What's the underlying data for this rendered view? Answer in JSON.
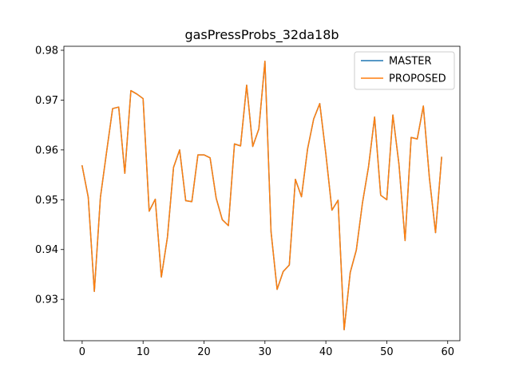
{
  "chart_data": {
    "type": "line",
    "title": "gasPressProbs_32da18b",
    "xlabel": "",
    "ylabel": "",
    "xlim": [
      -3,
      62
    ],
    "ylim": [
      0.9217,
      0.9808
    ],
    "xticks": [
      0,
      10,
      20,
      30,
      40,
      50,
      60
    ],
    "yticks": [
      0.93,
      0.94,
      0.95,
      0.96,
      0.97,
      0.98
    ],
    "xtick_labels": [
      "0",
      "10",
      "20",
      "30",
      "40",
      "50",
      "60"
    ],
    "ytick_labels": [
      "0.93",
      "0.94",
      "0.95",
      "0.96",
      "0.97",
      "0.98"
    ],
    "grid": false,
    "legend_position": "upper right",
    "x": [
      0,
      1,
      2,
      3,
      4,
      5,
      6,
      7,
      8,
      9,
      10,
      11,
      12,
      13,
      14,
      15,
      16,
      17,
      18,
      19,
      20,
      21,
      22,
      23,
      24,
      25,
      26,
      27,
      28,
      29,
      30,
      31,
      32,
      33,
      34,
      35,
      36,
      37,
      38,
      39,
      40,
      41,
      42,
      43,
      44,
      45,
      46,
      47,
      48,
      49,
      50,
      51,
      52,
      53,
      54,
      55,
      56,
      57,
      58,
      59
    ],
    "series": [
      {
        "name": "MASTER",
        "color": "#1f77b4",
        "values": [
          0.9568,
          0.9505,
          0.9316,
          0.9505,
          0.9595,
          0.9683,
          0.9686,
          0.9553,
          0.9719,
          0.9712,
          0.9703,
          0.9477,
          0.9501,
          0.9345,
          0.9425,
          0.9565,
          0.96,
          0.9498,
          0.9496,
          0.959,
          0.959,
          0.9584,
          0.9503,
          0.946,
          0.9448,
          0.9612,
          0.9608,
          0.973,
          0.9607,
          0.9642,
          0.9778,
          0.9436,
          0.932,
          0.9356,
          0.9369,
          0.9541,
          0.9506,
          0.9602,
          0.9662,
          0.9693,
          0.9592,
          0.9479,
          0.9499,
          0.9239,
          0.9354,
          0.9399,
          0.9493,
          0.9566,
          0.9666,
          0.9509,
          0.95,
          0.967,
          0.9571,
          0.9418,
          0.9625,
          0.9622,
          0.9688,
          0.9543,
          0.9434,
          0.9585
        ]
      },
      {
        "name": "PROPOSED",
        "color": "#ff7f0e",
        "values": [
          0.9568,
          0.9505,
          0.9316,
          0.9505,
          0.9595,
          0.9683,
          0.9686,
          0.9553,
          0.9719,
          0.9712,
          0.9703,
          0.9477,
          0.9501,
          0.9345,
          0.9425,
          0.9565,
          0.96,
          0.9498,
          0.9496,
          0.959,
          0.959,
          0.9584,
          0.9503,
          0.946,
          0.9448,
          0.9612,
          0.9608,
          0.973,
          0.9607,
          0.9642,
          0.9778,
          0.9436,
          0.932,
          0.9356,
          0.9369,
          0.9541,
          0.9506,
          0.9602,
          0.9662,
          0.9693,
          0.9592,
          0.9479,
          0.9499,
          0.9239,
          0.9354,
          0.9399,
          0.9493,
          0.9566,
          0.9666,
          0.9509,
          0.95,
          0.967,
          0.9571,
          0.9418,
          0.9625,
          0.9622,
          0.9688,
          0.9543,
          0.9434,
          0.9585
        ]
      }
    ]
  }
}
